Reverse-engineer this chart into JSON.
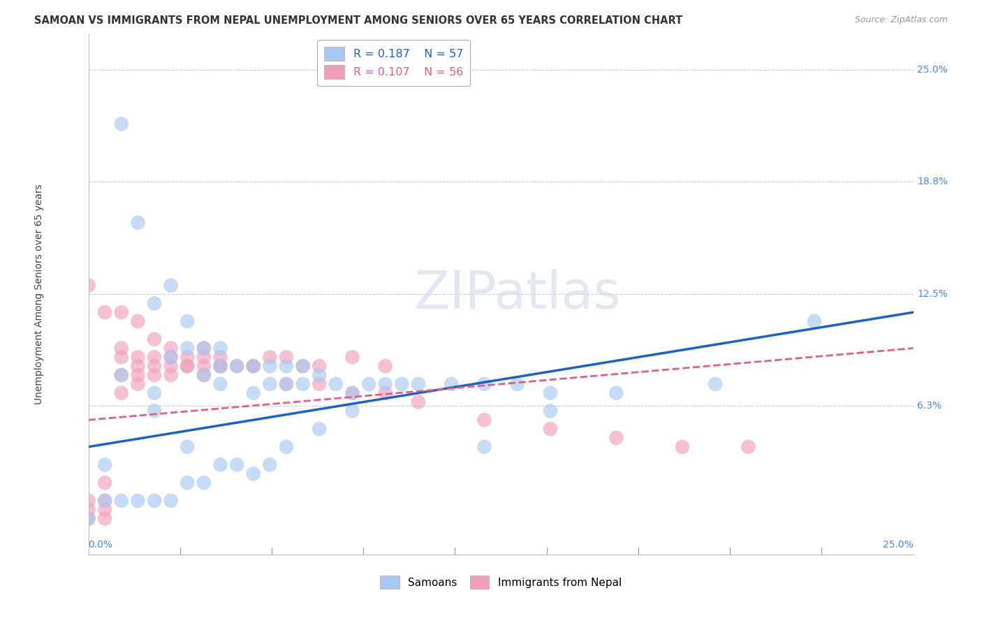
{
  "title": "SAMOAN VS IMMIGRANTS FROM NEPAL UNEMPLOYMENT AMONG SENIORS OVER 65 YEARS CORRELATION CHART",
  "source": "Source: ZipAtlas.com",
  "ylabel": "Unemployment Among Seniors over 65 years",
  "xlim": [
    0.0,
    0.25
  ],
  "ylim": [
    -0.02,
    0.27
  ],
  "samoans_R": 0.187,
  "samoans_N": 57,
  "nepal_R": 0.107,
  "nepal_N": 56,
  "samoans_color": "#A8C8F0",
  "nepal_color": "#F0A0BC",
  "samoans_line_color": "#2060C0",
  "nepal_line_color": "#E06080",
  "ytick_positions": [
    0.0,
    0.063,
    0.125,
    0.188,
    0.25
  ],
  "ytick_labels": [
    "",
    "6.3%",
    "12.5%",
    "18.8%",
    "25.0%"
  ],
  "samoans_x": [
    0.01,
    0.01,
    0.015,
    0.02,
    0.02,
    0.025,
    0.02,
    0.025,
    0.03,
    0.03,
    0.035,
    0.035,
    0.04,
    0.04,
    0.04,
    0.045,
    0.05,
    0.05,
    0.055,
    0.055,
    0.06,
    0.06,
    0.065,
    0.065,
    0.07,
    0.075,
    0.08,
    0.085,
    0.09,
    0.095,
    0.1,
    0.11,
    0.12,
    0.13,
    0.14,
    0.16,
    0.19,
    0.22,
    0.0,
    0.005,
    0.005,
    0.01,
    0.015,
    0.02,
    0.025,
    0.03,
    0.03,
    0.035,
    0.04,
    0.045,
    0.05,
    0.055,
    0.06,
    0.07,
    0.08,
    0.12,
    0.14
  ],
  "samoans_y": [
    0.22,
    0.08,
    0.165,
    0.07,
    0.12,
    0.13,
    0.06,
    0.09,
    0.095,
    0.11,
    0.08,
    0.095,
    0.095,
    0.085,
    0.075,
    0.085,
    0.085,
    0.07,
    0.085,
    0.075,
    0.085,
    0.075,
    0.085,
    0.075,
    0.08,
    0.075,
    0.07,
    0.075,
    0.075,
    0.075,
    0.075,
    0.075,
    0.075,
    0.075,
    0.07,
    0.07,
    0.075,
    0.11,
    0.0,
    0.01,
    0.03,
    0.01,
    0.01,
    0.01,
    0.01,
    0.02,
    0.04,
    0.02,
    0.03,
    0.03,
    0.025,
    0.03,
    0.04,
    0.05,
    0.06,
    0.04,
    0.06
  ],
  "nepal_x": [
    0.0,
    0.0,
    0.0,
    0.005,
    0.005,
    0.005,
    0.005,
    0.01,
    0.01,
    0.01,
    0.01,
    0.015,
    0.015,
    0.015,
    0.015,
    0.02,
    0.02,
    0.02,
    0.025,
    0.025,
    0.025,
    0.03,
    0.03,
    0.035,
    0.035,
    0.035,
    0.04,
    0.04,
    0.045,
    0.05,
    0.055,
    0.06,
    0.065,
    0.07,
    0.08,
    0.09,
    0.0,
    0.005,
    0.01,
    0.015,
    0.02,
    0.025,
    0.03,
    0.035,
    0.04,
    0.05,
    0.06,
    0.07,
    0.08,
    0.09,
    0.1,
    0.12,
    0.14,
    0.16,
    0.18,
    0.2
  ],
  "nepal_y": [
    0.0,
    0.005,
    0.01,
    0.0,
    0.005,
    0.01,
    0.02,
    0.07,
    0.08,
    0.09,
    0.095,
    0.075,
    0.085,
    0.09,
    0.08,
    0.09,
    0.08,
    0.085,
    0.085,
    0.09,
    0.08,
    0.085,
    0.09,
    0.085,
    0.095,
    0.08,
    0.085,
    0.09,
    0.085,
    0.085,
    0.09,
    0.09,
    0.085,
    0.085,
    0.09,
    0.085,
    0.13,
    0.115,
    0.115,
    0.11,
    0.1,
    0.095,
    0.085,
    0.09,
    0.085,
    0.085,
    0.075,
    0.075,
    0.07,
    0.07,
    0.065,
    0.055,
    0.05,
    0.045,
    0.04,
    0.04
  ]
}
